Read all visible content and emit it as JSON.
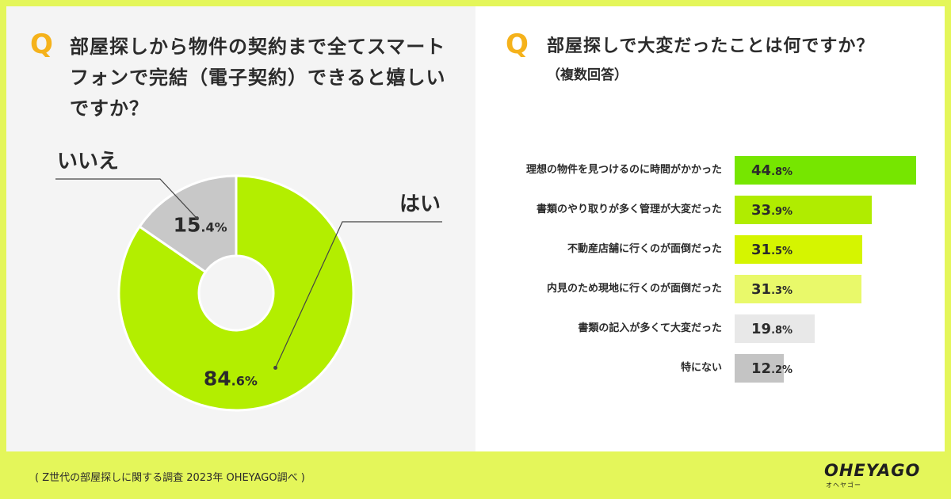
{
  "left": {
    "q_mark": "Q",
    "question": "部屋探しから物件の契約まで全てスマートフォンで完結（電子契約）できると嬉しいですか？"
  },
  "right": {
    "q_mark": "Q",
    "question": "部屋探しで大変だったことは何ですか？",
    "subtitle": "（複数回答）"
  },
  "footer": {
    "note": "( Z世代の部屋探しに関する調査 2023年 OHEYAGO調べ )"
  },
  "logo": {
    "main": "OHEYAGO",
    "sub": "オヘヤゴー"
  },
  "chart_data": [
    {
      "type": "pie",
      "variant": "donut",
      "labels": [
        "はい",
        "いいえ"
      ],
      "values": [
        84.6,
        15.4
      ],
      "value_text": [
        {
          "big": "84",
          "small": ".6%"
        },
        {
          "big": "15",
          "small": ".4%"
        }
      ],
      "colors": [
        "#b3ee00",
        "#c8c8c8"
      ]
    },
    {
      "type": "bar",
      "orientation": "horizontal",
      "categories": [
        "理想の物件を見つけるのに時間がかかった",
        "書類のやり取りが多く管理が大変だった",
        "不動産店舗に行くのが面倒だった",
        "内見のため現地に行くのが面倒だった",
        "書類の記入が多くて大変だった",
        "特にない"
      ],
      "values": [
        44.8,
        33.9,
        31.5,
        31.3,
        19.8,
        12.2
      ],
      "value_text": [
        {
          "big": "44",
          "small": ".8%"
        },
        {
          "big": "33",
          "small": ".9%"
        },
        {
          "big": "31",
          "small": ".5%"
        },
        {
          "big": "31",
          "small": ".3%"
        },
        {
          "big": "19",
          "small": ".8%"
        },
        {
          "big": "12",
          "small": ".2%"
        }
      ],
      "colors": [
        "#76e600",
        "#b0ec00",
        "#d5f500",
        "#e9f96a",
        "#e8e8e8",
        "#c4c4c4"
      ],
      "xlim": [
        0,
        44.8
      ]
    }
  ]
}
